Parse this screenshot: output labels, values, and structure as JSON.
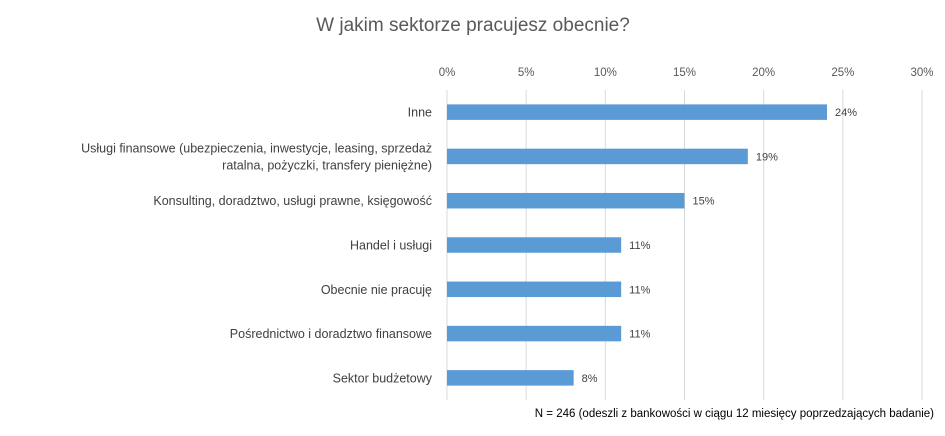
{
  "chart_data": {
    "type": "bar",
    "orientation": "horizontal",
    "title": "W jakim sektorze pracujesz obecnie?",
    "categories": [
      [
        "Inne"
      ],
      [
        "Usługi finansowe (ubezpieczenia, inwestycje, leasing, sprzedaż",
        "ratalna, pożyczki, transfery pieniężne)"
      ],
      [
        "Konsulting, doradztwo, usługi prawne, księgowość"
      ],
      [
        "Handel i usługi"
      ],
      [
        "Obecnie nie pracuję"
      ],
      [
        "Pośrednictwo i doradztwo finansowe"
      ],
      [
        "Sektor budżetowy"
      ]
    ],
    "values": [
      24,
      19,
      15,
      11,
      11,
      11,
      8
    ],
    "value_labels": [
      "24%",
      "19%",
      "15%",
      "11%",
      "11%",
      "11%",
      "8%"
    ],
    "xlim": [
      0,
      30
    ],
    "xticks": [
      0,
      5,
      10,
      15,
      20,
      25,
      30
    ],
    "xtick_labels": [
      "0%",
      "5%",
      "10%",
      "15%",
      "20%",
      "25%",
      "30%"
    ],
    "axis_position": "top",
    "grid": true,
    "bar_color": "#5B9BD5",
    "grid_color": "#D9D9D9",
    "note": "N = 246 (odeszli z bankowości w ciągu 12 miesięcy poprzedzających badanie)"
  }
}
